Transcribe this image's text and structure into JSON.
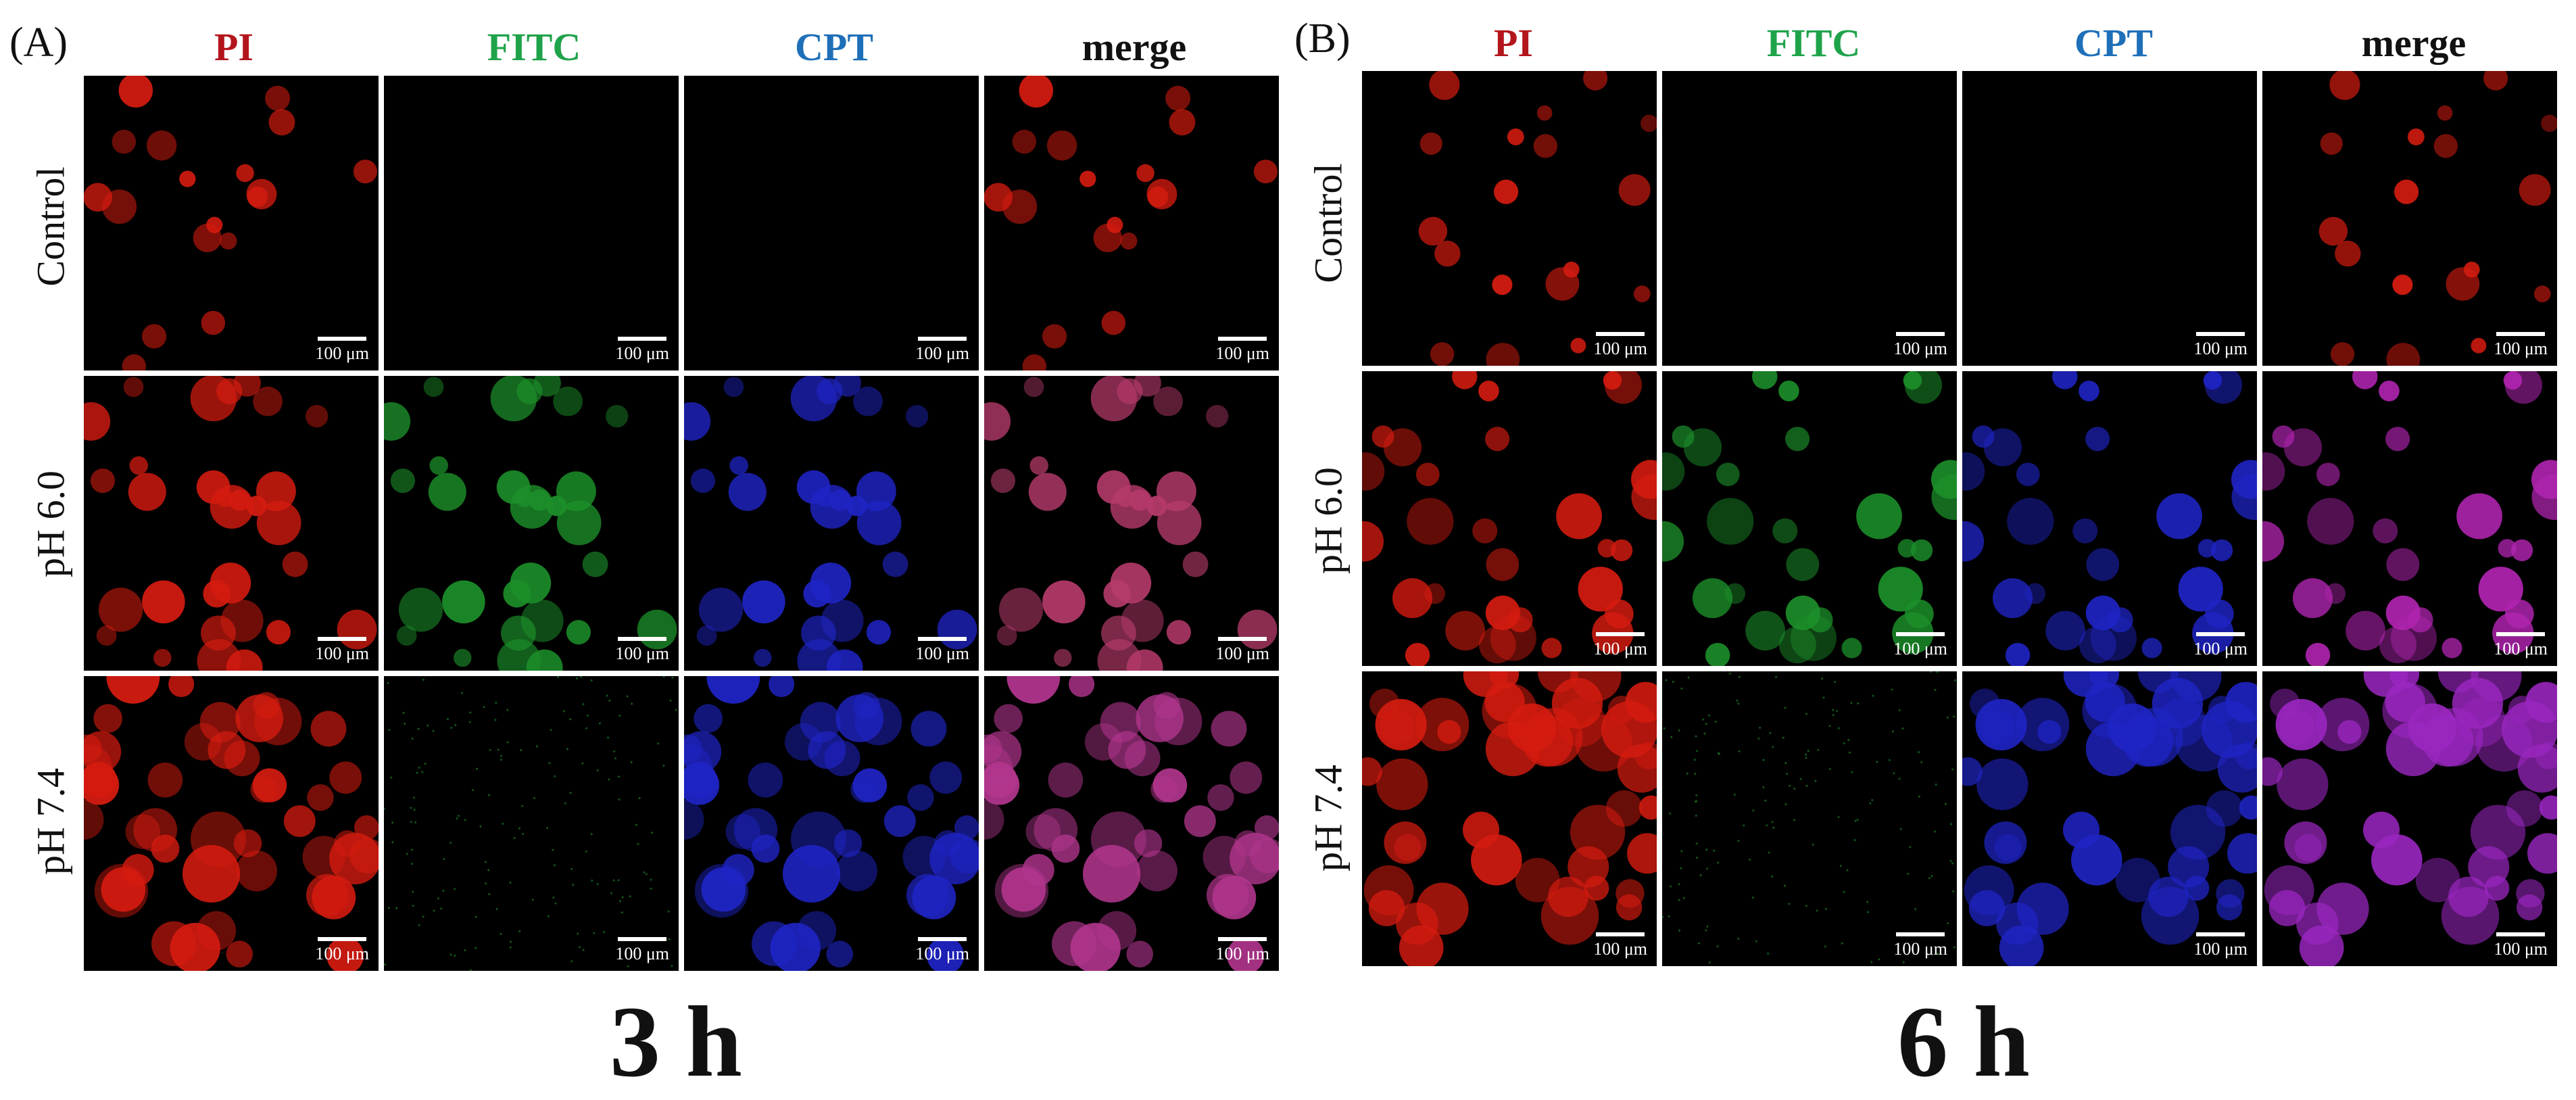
{
  "figure": {
    "panels": [
      {
        "label": "(A)",
        "time": "3 h",
        "columns": [
          "PI",
          "FITC",
          "CPT",
          "merge"
        ],
        "rows": [
          "Control",
          "pH 6.0",
          "pH 7.4"
        ],
        "scale_bar_text": "100 μm"
      },
      {
        "label": "(B)",
        "time": "6 h",
        "columns": [
          "PI",
          "FITC",
          "CPT",
          "merge"
        ],
        "rows": [
          "Control",
          "pH 6.0",
          "pH 7.4"
        ],
        "scale_bar_text": "100 μm"
      }
    ],
    "column_colors": {
      "PI": "#b3151c",
      "FITC": "#1fa34a",
      "CPT": "#1e6fb8",
      "merge": "#111111"
    },
    "channel_fill": {
      "PI": "#d41b10",
      "FITC": "#1c8f2a",
      "CPT": "#1f24c4",
      "merge_pH60_A": "#b43a6a",
      "merge_pH74_A": "#b0358c",
      "merge_pH60_B": "#b024b0",
      "merge_pH74_B": "#9a26c0"
    }
  }
}
